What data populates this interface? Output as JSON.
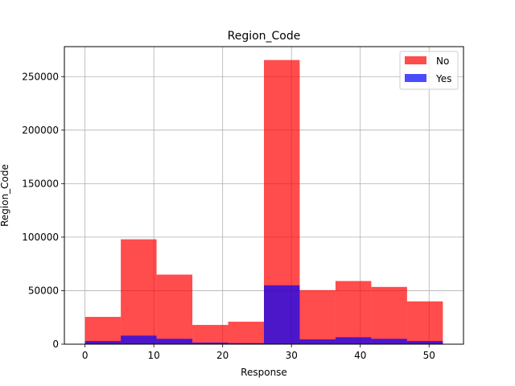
{
  "chart_data": {
    "type": "bar",
    "title": "Region_Code",
    "xlabel": "Response",
    "ylabel": "Region_Code",
    "xlim": [
      -3,
      55
    ],
    "ylim": [
      0,
      278000
    ],
    "xticks": [
      0,
      10,
      20,
      30,
      40,
      50
    ],
    "yticks": [
      0,
      50000,
      100000,
      150000,
      200000,
      250000
    ],
    "grid": true,
    "legend_position": "top-right",
    "bin_edges": [
      0,
      5.2,
      10.4,
      15.6,
      20.8,
      26,
      31.2,
      36.4,
      41.6,
      46.8,
      52
    ],
    "series": [
      {
        "name": "No",
        "color": "#ff0000",
        "alpha": 0.7,
        "values": [
          25500,
          98000,
          65000,
          18000,
          21000,
          265500,
          50500,
          59000,
          53500,
          40000
        ]
      },
      {
        "name": "Yes",
        "color": "#0000ff",
        "alpha": 0.7,
        "values": [
          3000,
          8000,
          5000,
          1500,
          1000,
          55000,
          4500,
          6500,
          5000,
          3000
        ]
      }
    ]
  }
}
